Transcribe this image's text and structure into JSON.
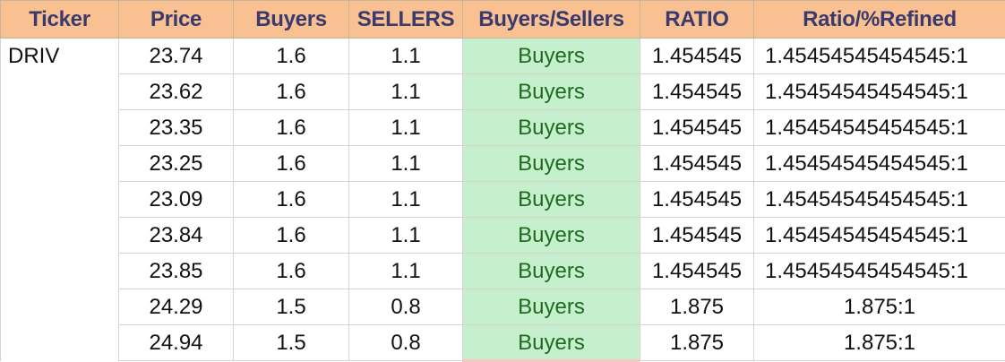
{
  "sheet": {
    "headers": [
      "Ticker",
      "Price",
      "Buyers",
      "SELLERS",
      "Buyers/Sellers",
      "RATIO",
      "Ratio/%Refined"
    ],
    "rows": [
      {
        "ticker": "DRIV",
        "price": "23.74",
        "buyers": "1.6",
        "sellers": "1.1",
        "signal": "Buyers",
        "ratio": "1.454545",
        "refined": "1.45454545454545:1"
      },
      {
        "ticker": "",
        "price": "23.62",
        "buyers": "1.6",
        "sellers": "1.1",
        "signal": "Buyers",
        "ratio": "1.454545",
        "refined": "1.45454545454545:1"
      },
      {
        "ticker": "",
        "price": "23.35",
        "buyers": "1.6",
        "sellers": "1.1",
        "signal": "Buyers",
        "ratio": "1.454545",
        "refined": "1.45454545454545:1"
      },
      {
        "ticker": "",
        "price": "23.25",
        "buyers": "1.6",
        "sellers": "1.1",
        "signal": "Buyers",
        "ratio": "1.454545",
        "refined": "1.45454545454545:1"
      },
      {
        "ticker": "",
        "price": "23.09",
        "buyers": "1.6",
        "sellers": "1.1",
        "signal": "Buyers",
        "ratio": "1.454545",
        "refined": "1.45454545454545:1"
      },
      {
        "ticker": "",
        "price": "23.84",
        "buyers": "1.6",
        "sellers": "1.1",
        "signal": "Buyers",
        "ratio": "1.454545",
        "refined": "1.45454545454545:1"
      },
      {
        "ticker": "",
        "price": "23.85",
        "buyers": "1.6",
        "sellers": "1.1",
        "signal": "Buyers",
        "ratio": "1.454545",
        "refined": "1.45454545454545:1"
      },
      {
        "ticker": "",
        "price": "24.29",
        "buyers": "1.5",
        "sellers": "0.8",
        "signal": "Buyers",
        "ratio": "1.875",
        "refined": "1.875:1"
      },
      {
        "ticker": "",
        "price": "24.94",
        "buyers": "1.5",
        "sellers": "0.8",
        "signal": "Buyers",
        "ratio": "1.875",
        "refined": "1.875:1"
      }
    ]
  },
  "colors": {
    "header_bg": "#f9c191",
    "header_text": "#3a3a6e",
    "signal_bg": "#c6efce",
    "signal_text": "#1e6b1e"
  }
}
